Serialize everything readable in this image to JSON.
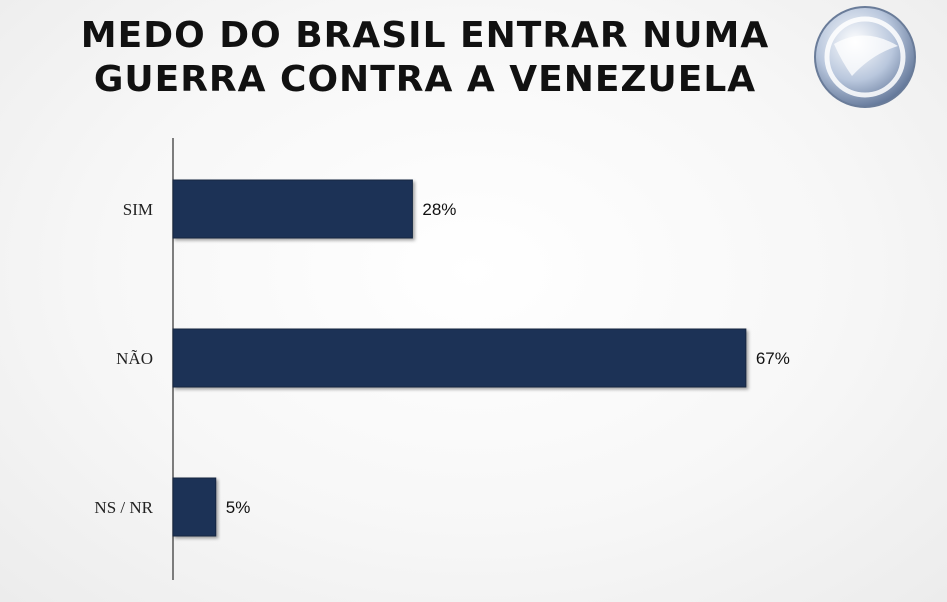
{
  "title_lines": [
    "MEDO DO BRASIL ENTRAR NUMA",
    "GUERRA CONTRA A VENEZUELA"
  ],
  "logo": {
    "icon": "record-tv-logo-icon"
  },
  "colors": {
    "bar": "#1f3356",
    "bar_edge": "#142541",
    "axis": "#555555"
  },
  "chart_data": {
    "type": "bar",
    "orientation": "horizontal",
    "title": "MEDO DO BRASIL ENTRAR NUMA GUERRA CONTRA A VENEZUELA",
    "categories": [
      "SIM",
      "NÃO",
      "NS / NR"
    ],
    "values": [
      28,
      67,
      5
    ],
    "value_labels": [
      "28%",
      "67%",
      "5%"
    ],
    "unit": "%",
    "xlim": [
      0,
      100
    ],
    "grid": false,
    "legend": "none"
  }
}
